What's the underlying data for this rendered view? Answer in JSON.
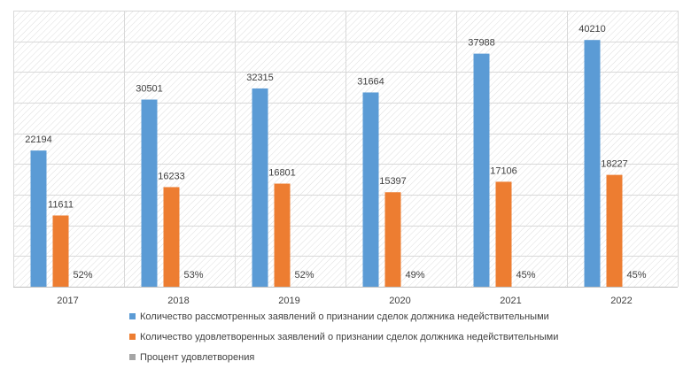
{
  "chart_data": {
    "type": "bar",
    "categories": [
      "2017",
      "2018",
      "2019",
      "2020",
      "2021",
      "2022"
    ],
    "series": [
      {
        "name": "Количество рассмотренных заявлений о признании сделок должника недействительными",
        "values": [
          22194,
          30501,
          32315,
          31664,
          37988,
          40210
        ],
        "labels": [
          "22194",
          "30501",
          "32315",
          "31664",
          "37988",
          "40210"
        ],
        "color": "#5b9bd5"
      },
      {
        "name": "Количество удовлетворенных заявлений о признании сделок должника недействительными",
        "values": [
          11611,
          16233,
          16801,
          15397,
          17106,
          18227
        ],
        "labels": [
          "11611",
          "16233",
          "16801",
          "15397",
          "17106",
          "18227"
        ],
        "color": "#ed7d31"
      },
      {
        "name": "Процент удовлетворения",
        "values": [
          52,
          53,
          52,
          49,
          45,
          45
        ],
        "labels": [
          "52%",
          "53%",
          "52%",
          "49%",
          "45%",
          "45%"
        ],
        "color": "#a5a5a5"
      }
    ],
    "ylim": [
      0,
      45000
    ],
    "grid": true,
    "legend_position": "bottom"
  }
}
